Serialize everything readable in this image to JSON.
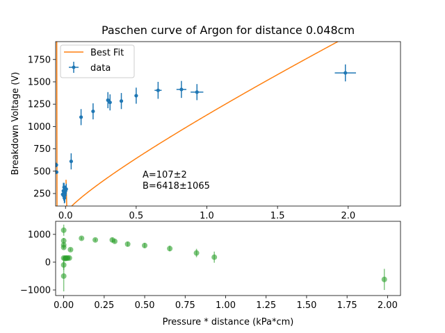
{
  "chart_data": [
    {
      "type": "scatter",
      "title": "Paschen curve of Argon for distance 0.048cm",
      "xlabel": "",
      "ylabel": "Breakdown Voltage (V)",
      "xlim": [
        -0.07,
        2.37
      ],
      "ylim": [
        110,
        1950
      ],
      "xticks": [
        0.0,
        0.5,
        1.0,
        1.5,
        2.0
      ],
      "xtick_labels": [
        "0.0",
        "0.5",
        "1.0",
        "1.5",
        "2.0"
      ],
      "yticks": [
        250,
        500,
        750,
        1000,
        1250,
        1500,
        1750
      ],
      "ytick_labels": [
        "250",
        "500",
        "750",
        "1000",
        "1250",
        "1500",
        "1750"
      ],
      "legend": {
        "placement": "top-left",
        "fit_label": "Best Fit",
        "data_label": "data"
      },
      "annotation": [
        "A=107±2",
        "B=6418±1065"
      ],
      "colors": {
        "data": "#1f77b4",
        "fit": "#ff7f0e"
      },
      "series": [
        {
          "name": "data",
          "points": [
            {
              "x": -0.065,
              "y": 570,
              "xerr": 0.005,
              "yerr": 25
            },
            {
              "x": -0.063,
              "y": 490,
              "xerr": 0.005,
              "yerr": 20
            },
            {
              "x": -0.02,
              "y": 240,
              "xerr": 0.004,
              "yerr": 30
            },
            {
              "x": -0.015,
              "y": 280,
              "xerr": 0.004,
              "yerr": 90
            },
            {
              "x": -0.012,
              "y": 240,
              "xerr": 0.004,
              "yerr": 70
            },
            {
              "x": -0.01,
              "y": 320,
              "xerr": 0.004,
              "yerr": 50
            },
            {
              "x": -0.008,
              "y": 200,
              "xerr": 0.004,
              "yerr": 60
            },
            {
              "x": -0.005,
              "y": 230,
              "xerr": 0.004,
              "yerr": 80
            },
            {
              "x": 0.0,
              "y": 280,
              "xerr": 0.004,
              "yerr": 60
            },
            {
              "x": 0.005,
              "y": 300,
              "xerr": 0.004,
              "yerr": 60
            },
            {
              "x": 0.04,
              "y": 610,
              "xerr": 0.005,
              "yerr": 90
            },
            {
              "x": 0.11,
              "y": 1105,
              "xerr": 0.006,
              "yerr": 90
            },
            {
              "x": 0.195,
              "y": 1170,
              "xerr": 0.007,
              "yerr": 90
            },
            {
              "x": 0.3,
              "y": 1295,
              "xerr": 0.008,
              "yerr": 90
            },
            {
              "x": 0.315,
              "y": 1270,
              "xerr": 0.008,
              "yerr": 90
            },
            {
              "x": 0.395,
              "y": 1285,
              "xerr": 0.009,
              "yerr": 90
            },
            {
              "x": 0.5,
              "y": 1345,
              "xerr": 0.012,
              "yerr": 90
            },
            {
              "x": 0.655,
              "y": 1405,
              "xerr": 0.025,
              "yerr": 95
            },
            {
              "x": 0.82,
              "y": 1415,
              "xerr": 0.035,
              "yerr": 95
            },
            {
              "x": 0.93,
              "y": 1385,
              "xerr": 0.045,
              "yerr": 90
            },
            {
              "x": 1.98,
              "y": 1600,
              "xerr": 0.075,
              "yerr": 95
            }
          ]
        },
        {
          "name": "Best Fit",
          "type": "line",
          "model": "Paschen: V = B*pd / (ln(A*pd) - ln(ln(1+1/gamma)))",
          "A": 107,
          "B": 6418
        }
      ]
    },
    {
      "type": "scatter",
      "title": "",
      "xlabel": "Pressure * distance (kPa*cm)",
      "ylabel": "",
      "xlim": [
        -0.05,
        2.08
      ],
      "ylim": [
        -1200,
        1470
      ],
      "xticks": [
        0.0,
        0.25,
        0.5,
        0.75,
        1.0,
        1.25,
        1.5,
        1.75,
        2.0
      ],
      "xtick_labels": [
        "0.00",
        "0.25",
        "0.50",
        "0.75",
        "1.00",
        "1.25",
        "1.50",
        "1.75",
        "2.00"
      ],
      "yticks": [
        -1000,
        0,
        1000
      ],
      "ytick_labels": [
        "−1000",
        "0",
        "1000"
      ],
      "colors": {
        "residual": "#2ca02c"
      },
      "series": [
        {
          "name": "",
          "points": [
            {
              "x": 0.0,
              "y": 1150,
              "yerr": 200
            },
            {
              "x": 0.0,
              "y": 770,
              "yerr": 100
            },
            {
              "x": 0.0,
              "y": 620,
              "yerr": 60
            },
            {
              "x": 0.0,
              "y": 530,
              "yerr": 60
            },
            {
              "x": 0.0,
              "y": 150,
              "yerr": 60
            },
            {
              "x": 0.0,
              "y": -100,
              "yerr": 180
            },
            {
              "x": 0.0,
              "y": -500,
              "yerr": 550
            },
            {
              "x": 0.008,
              "y": 130,
              "yerr": 40
            },
            {
              "x": 0.012,
              "y": 150,
              "yerr": 40
            },
            {
              "x": 0.018,
              "y": 140,
              "yerr": 40
            },
            {
              "x": 0.025,
              "y": 150,
              "yerr": 40
            },
            {
              "x": 0.035,
              "y": 150,
              "yerr": 40
            },
            {
              "x": 0.042,
              "y": 450,
              "yerr": 50
            },
            {
              "x": 0.11,
              "y": 860,
              "yerr": 50
            },
            {
              "x": 0.195,
              "y": 800,
              "yerr": 50
            },
            {
              "x": 0.3,
              "y": 800,
              "yerr": 80
            },
            {
              "x": 0.315,
              "y": 750,
              "yerr": 60
            },
            {
              "x": 0.395,
              "y": 650,
              "yerr": 80
            },
            {
              "x": 0.5,
              "y": 600,
              "yerr": 90
            },
            {
              "x": 0.655,
              "y": 490,
              "yerr": 100
            },
            {
              "x": 0.82,
              "y": 330,
              "yerr": 150
            },
            {
              "x": 0.93,
              "y": 180,
              "yerr": 200
            },
            {
              "x": 1.98,
              "y": -620,
              "yerr": 380
            }
          ]
        }
      ]
    }
  ]
}
